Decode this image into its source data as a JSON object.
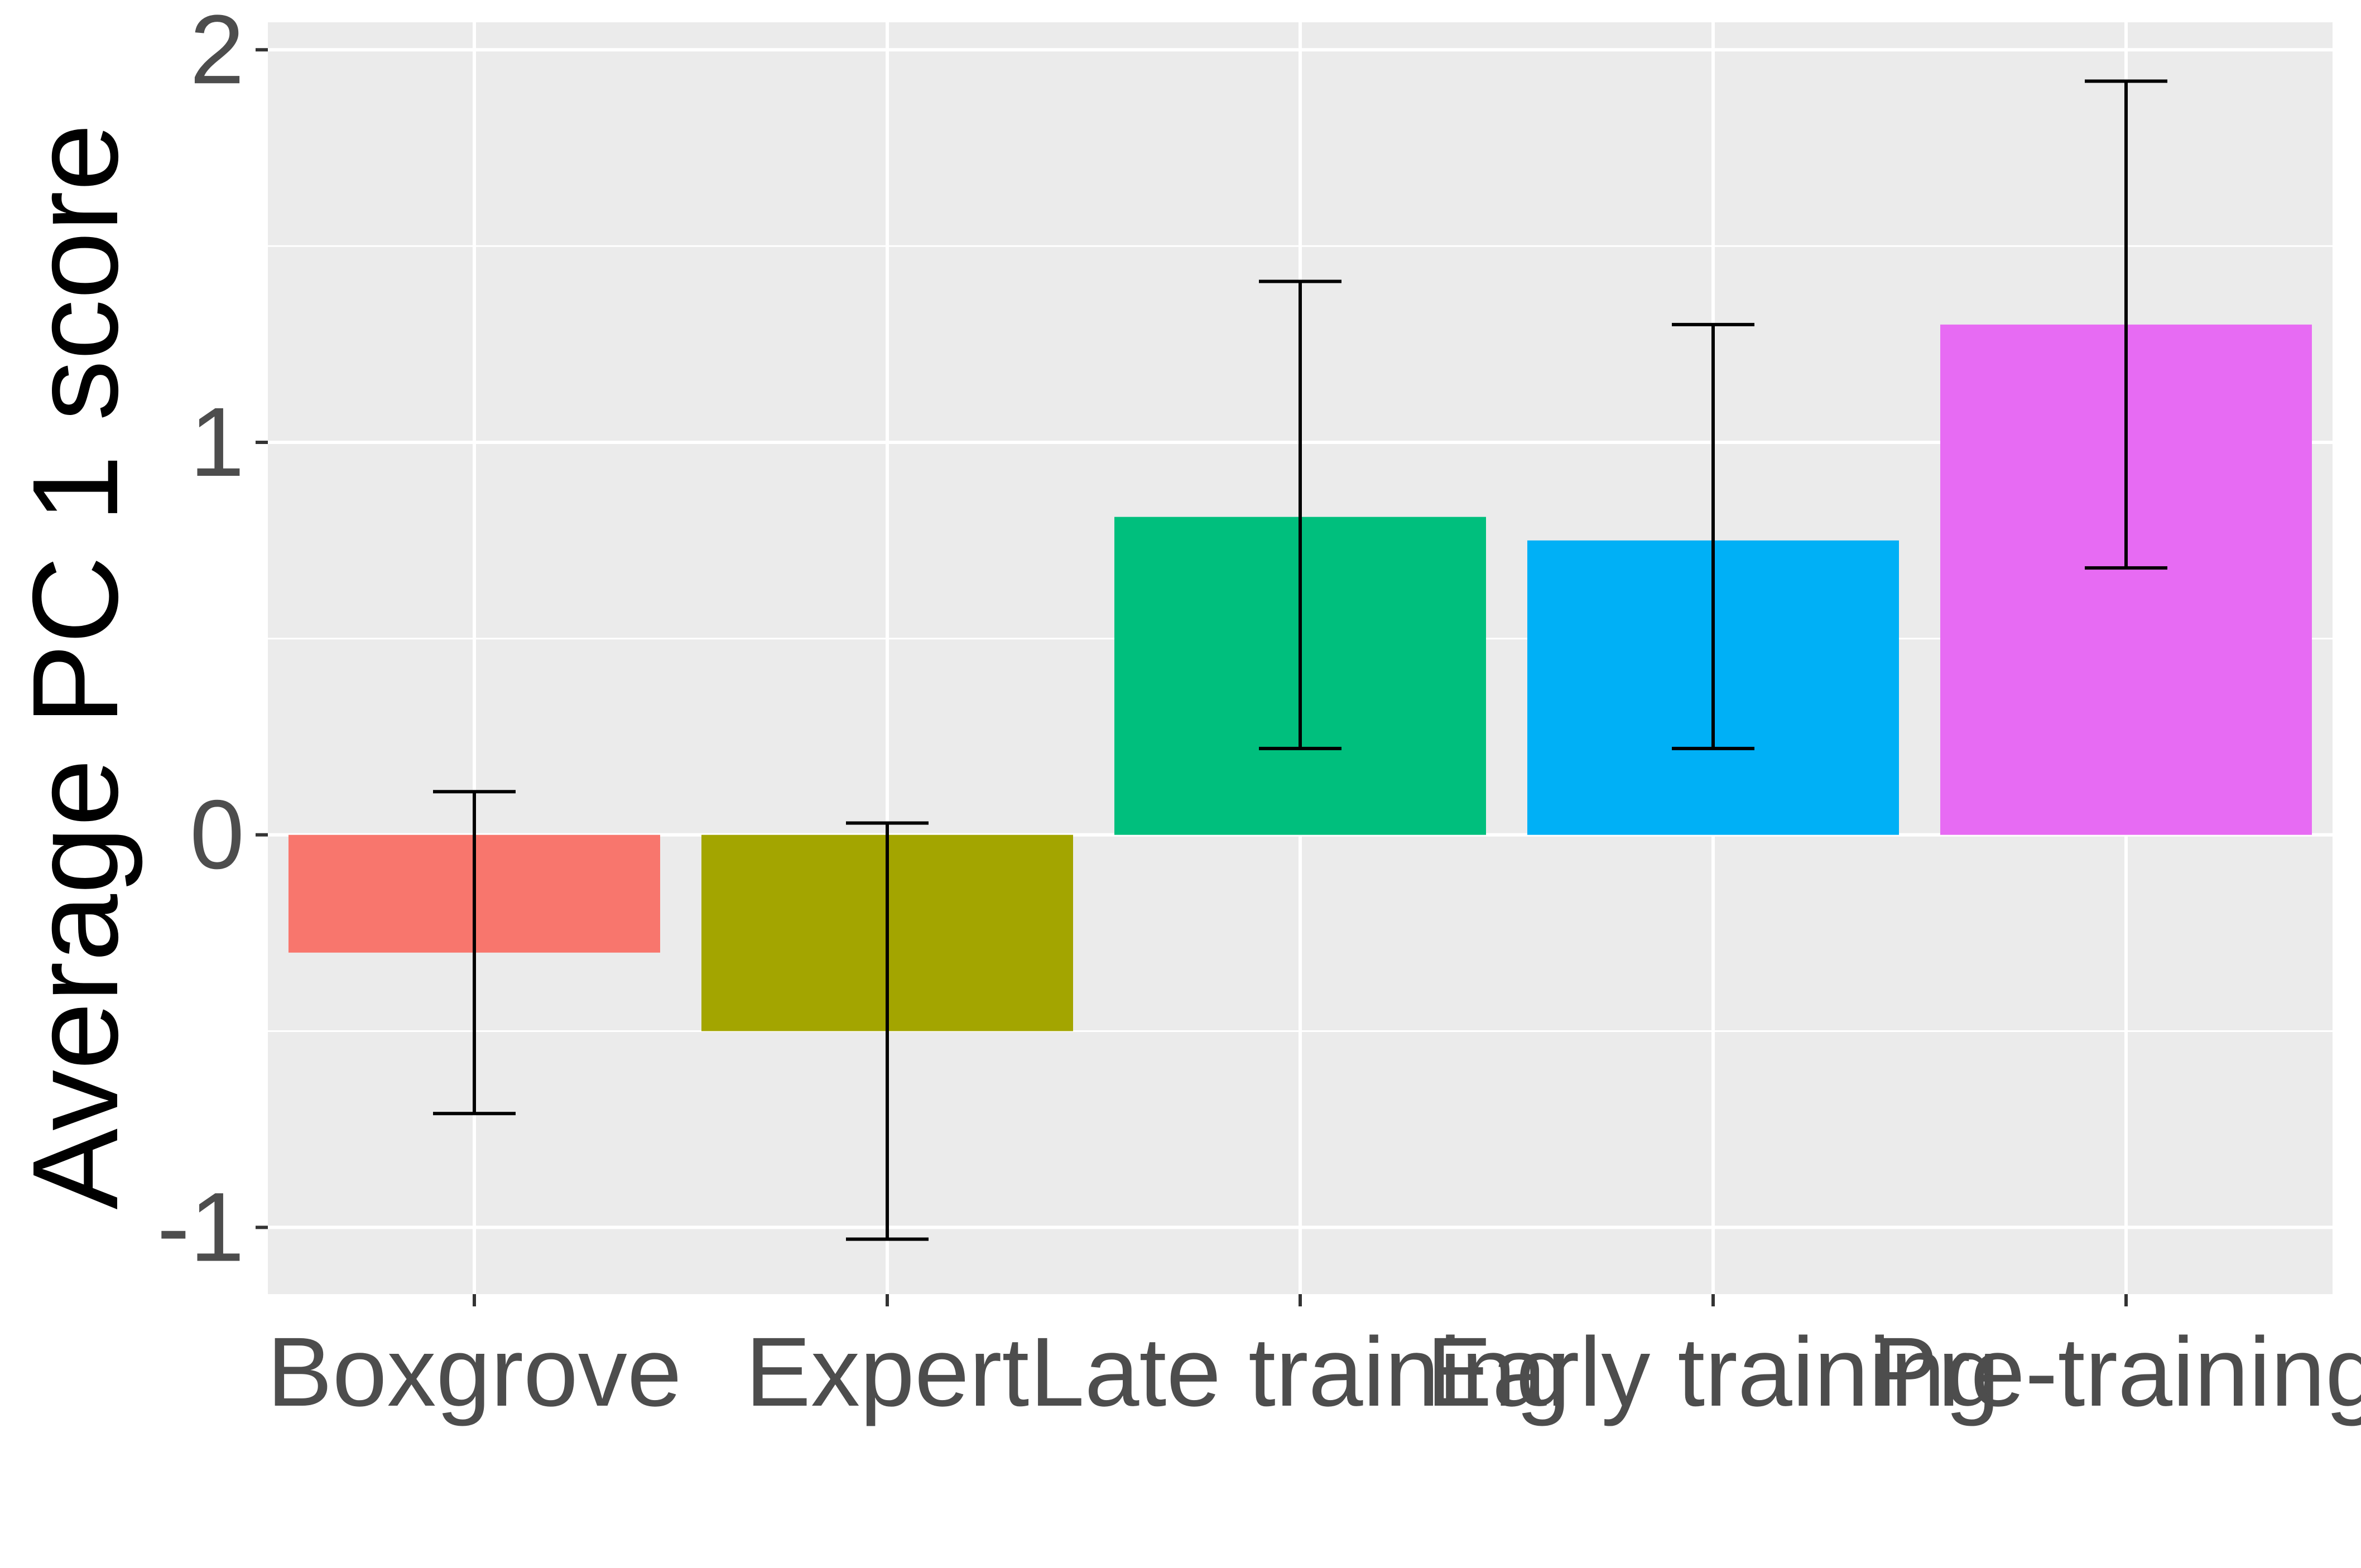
{
  "chart_data": {
    "type": "bar",
    "title": "",
    "xlabel": "",
    "ylabel": "Average PC 1 score",
    "categories": [
      "Boxgrove",
      "Expert",
      "Late training",
      "Early training",
      "Pre-training"
    ],
    "values": [
      -0.3,
      -0.5,
      0.81,
      0.75,
      1.3
    ],
    "error_low": [
      -0.71,
      -1.03,
      0.22,
      0.22,
      0.68
    ],
    "error_high": [
      0.11,
      0.03,
      1.41,
      1.3,
      1.92
    ],
    "colors": [
      "#F8766D",
      "#A3A500",
      "#00BF7D",
      "#00B0F6",
      "#E76BF3"
    ],
    "ylim": [
      -1.17,
      2.07
    ],
    "y_ticks": [
      -1,
      0,
      1,
      2
    ],
    "y_tick_labels": [
      "-1",
      "0",
      "1",
      "2"
    ],
    "grid": true,
    "legend": "none",
    "panel_background": "#EBEBEB",
    "grid_color": "#FFFFFF",
    "errorbar_color": "#000000"
  }
}
